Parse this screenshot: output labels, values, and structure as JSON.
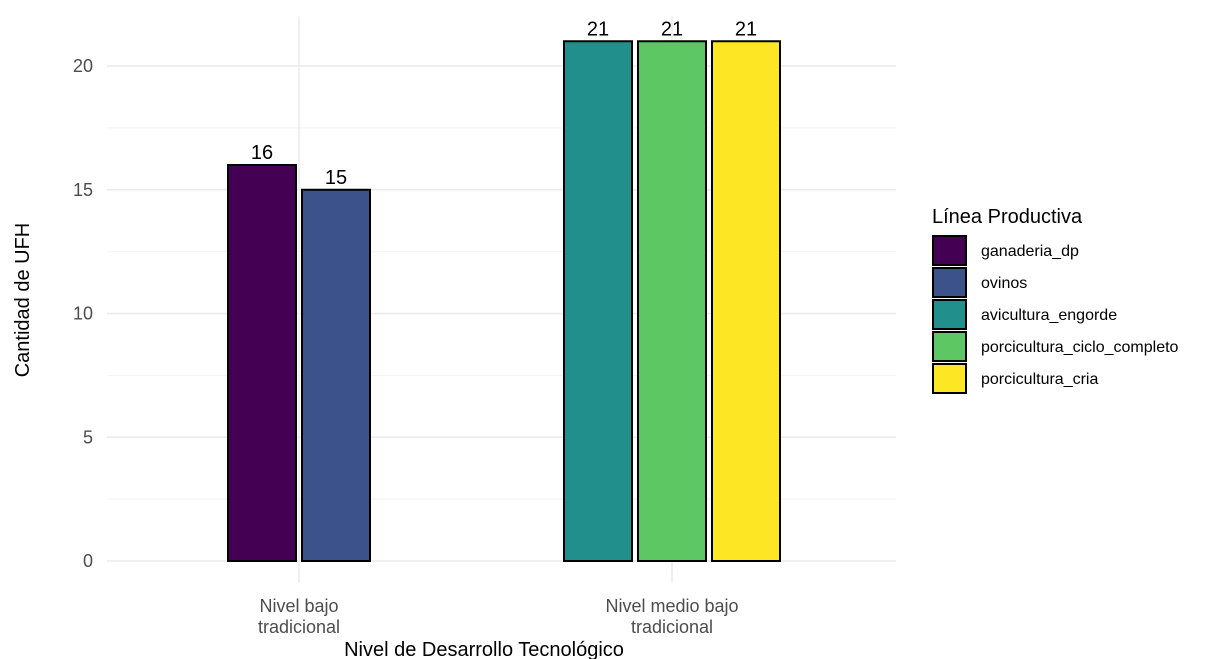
{
  "chart_data": {
    "type": "bar",
    "title": "",
    "xlabel": "Nivel de Desarrollo Tecnológico",
    "ylabel": "Cantidad de UFH",
    "ylim": [
      0,
      22
    ],
    "yticks": [
      0,
      5,
      10,
      15,
      20
    ],
    "grid": true,
    "legend_position": "right",
    "legend_title": "Línea Productiva",
    "categories": [
      {
        "label_lines": [
          "Nivel bajo",
          "tradicional"
        ]
      },
      {
        "label_lines": [
          "Nivel medio bajo",
          "tradicional"
        ]
      }
    ],
    "series": [
      {
        "name": "ganaderia_dp",
        "color": "#440154",
        "values": [
          16,
          null
        ]
      },
      {
        "name": "ovinos",
        "color": "#3B528B",
        "values": [
          15,
          null
        ]
      },
      {
        "name": "avicultura_engorde",
        "color": "#21908C",
        "values": [
          null,
          21
        ]
      },
      {
        "name": "porcicultura_ciclo_completo",
        "color": "#5DC863",
        "values": [
          null,
          21
        ]
      },
      {
        "name": "porcicultura_cria",
        "color": "#FDE725",
        "values": [
          null,
          21
        ]
      }
    ]
  }
}
